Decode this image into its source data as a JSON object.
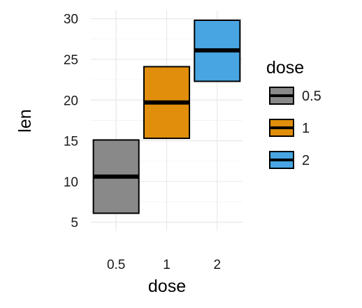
{
  "chart_data": {
    "type": "box",
    "xlabel": "dose",
    "ylabel": "len",
    "categories": [
      "0.5",
      "1",
      "2"
    ],
    "yticks": [
      5,
      10,
      15,
      20,
      25,
      30
    ],
    "ylim": [
      3.9,
      31.0
    ],
    "grid": true,
    "legend": {
      "title": "dose",
      "placement": "right",
      "entries": [
        {
          "label": "0.5",
          "color": "#898989"
        },
        {
          "label": "1",
          "color": "#E08E0B"
        },
        {
          "label": "2",
          "color": "#48A5E2"
        }
      ]
    },
    "boxes": [
      {
        "category": "0.5",
        "q1": 6.1,
        "median": 10.6,
        "q3": 15.1,
        "color": "#898989"
      },
      {
        "category": "1",
        "q1": 15.3,
        "median": 19.7,
        "q3": 24.1,
        "color": "#E08E0B"
      },
      {
        "category": "2",
        "q1": 22.3,
        "median": 26.1,
        "q3": 29.8,
        "color": "#48A5E2"
      }
    ]
  }
}
